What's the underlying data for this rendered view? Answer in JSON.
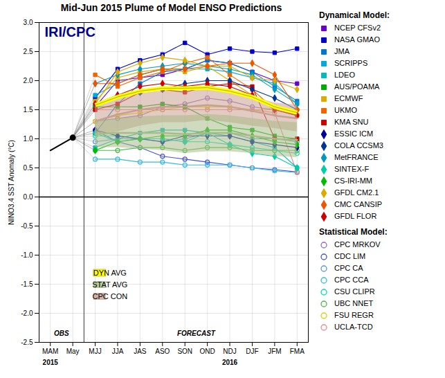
{
  "chart_data": {
    "type": "line",
    "title": "Mid-Jun 2015 Plume of Model ENSO Predictions",
    "categories": [
      "MAM",
      "May",
      "MJJ",
      "JJA",
      "JAS",
      "ASO",
      "SON",
      "OND",
      "NDJ",
      "DJF",
      "JFM",
      "FMA"
    ],
    "ylabel": "NINO3.4 SST Anomaly (°C)",
    "ylim": [
      -2.5,
      3.0
    ],
    "yticks": [
      -2.5,
      {
        "value": -2,
        "label": "-2.0"
      },
      -1.5,
      {
        "value": -1,
        "label": "-1.0"
      },
      -0.5,
      {
        "value": 0,
        "label": "0.0"
      },
      0.5,
      {
        "value": 1,
        "label": "1.0"
      },
      1.5,
      {
        "value": 2,
        "label": "2.0"
      },
      2.5,
      {
        "value": 3,
        "label": "3.0"
      }
    ],
    "grid": true,
    "reference_y": [
      0
    ],
    "observed": {
      "color": "black",
      "values": [
        0.8,
        1.02,
        null,
        null,
        null,
        null,
        null,
        null,
        null,
        null,
        null,
        null
      ]
    },
    "series_groups": [
      {
        "title": "Dynamical Model:",
        "series": [
          {
            "name": "NCEP CFSv2",
            "color": "#6600cc",
            "marker": "square",
            "values": [
              null,
              null,
              1.55,
              2.0,
              2.05,
              2.1,
              2.2,
              2.35,
              2.3,
              2.15,
              2.0,
              1.95
            ]
          },
          {
            "name": "NASA GMAO",
            "color": "#0000cc",
            "marker": "square",
            "values": [
              null,
              null,
              1.7,
              2.2,
              2.35,
              2.45,
              2.65,
              2.45,
              2.55,
              2.5,
              2.48,
              2.55
            ]
          },
          {
            "name": "JMA",
            "color": "#0077cc",
            "marker": "square",
            "values": [
              null,
              null,
              1.1,
              1.6,
              1.95,
              2.15,
              2.2,
              2.35,
              2.3,
              2.15,
              1.9,
              1.65
            ]
          },
          {
            "name": "SCRIPPS",
            "color": "#00aadd",
            "marker": "square",
            "values": [
              null,
              null,
              1.75,
              1.95,
              2.1,
              2.2,
              2.2,
              2.2,
              2.15,
              2.05,
              1.95,
              1.6
            ]
          },
          {
            "name": "LDEO",
            "color": "#00bbbb",
            "marker": "square",
            "values": [
              null,
              null,
              0.85,
              1.0,
              1.1,
              1.15,
              1.15,
              1.1,
              1.05,
              0.95,
              0.85,
              0.5
            ]
          },
          {
            "name": "AUS/POAMA",
            "color": "#00aa00",
            "marker": "square",
            "values": [
              null,
              null,
              1.55,
              1.55,
              1.55,
              1.6,
              1.55,
              1.35,
              1.2,
              1.15,
              1.05,
              1.0
            ]
          },
          {
            "name": "ECMWF",
            "color": "#ddaa00",
            "marker": "square",
            "values": [
              null,
              null,
              1.65,
              2.05,
              2.15,
              2.2,
              2.15,
              2.25,
              2.0,
              1.75,
              1.55,
              1.4
            ]
          },
          {
            "name": "UKMO",
            "color": "#ee6600",
            "marker": "square",
            "values": [
              null,
              null,
              2.1,
              1.9,
              2.05,
              2.15,
              2.3,
              2.4,
              2.1,
              1.85,
              1.5,
              1.4
            ]
          },
          {
            "name": "KMA SNU",
            "color": "#cc0000",
            "marker": "square",
            "values": [
              null,
              null,
              1.5,
              1.6,
              1.8,
              1.85,
              1.8,
              1.9,
              1.95,
              1.9,
              1.0,
              1.0
            ]
          },
          {
            "name": "ESSIC ICM",
            "color": "#000099",
            "marker": "diamond",
            "values": [
              null,
              null,
              1.15,
              1.05,
              1.0,
              0.95,
              1.05,
              1.05,
              1.05,
              0.95,
              0.9,
              0.85
            ]
          },
          {
            "name": "COLA CCSM3",
            "color": "#003399",
            "marker": "diamond",
            "values": [
              null,
              null,
              1.6,
              1.75,
              1.8,
              1.85,
              1.95,
              2.0,
              2.0,
              1.85,
              1.7,
              1.5
            ]
          },
          {
            "name": "MetFRANCE",
            "color": "#0099bb",
            "marker": "diamond",
            "values": [
              null,
              null,
              1.95,
              2.1,
              2.2,
              2.25,
              2.3,
              2.25,
              2.2,
              2.1,
              1.85,
              1.6
            ]
          },
          {
            "name": "SINTEX-F",
            "color": "#00ccaa",
            "marker": "diamond",
            "values": [
              null,
              null,
              1.1,
              0.95,
              1.0,
              1.0,
              0.95,
              1.1,
              0.9,
              0.75,
              0.7,
              0.5
            ]
          },
          {
            "name": "CS-IRI-MM",
            "color": "#00bb00",
            "marker": "diamond",
            "values": [
              null,
              null,
              0.8,
              0.95,
              1.0,
              1.05,
              1.05,
              1.15,
              1.15,
              1.05,
              0.95,
              0.9
            ]
          },
          {
            "name": "GFDL CM2.1",
            "color": "#ddaa00",
            "marker": "diamond",
            "values": [
              null,
              null,
              1.6,
              2.15,
              2.3,
              2.4,
              2.35,
              2.25,
              2.25,
              2.05,
              2.0,
              1.85
            ]
          },
          {
            "name": "CMC CANSIP",
            "color": "#ee5500",
            "marker": "diamond",
            "values": [
              null,
              null,
              1.95,
              1.95,
              2.1,
              2.2,
              2.2,
              2.25,
              2.3,
              2.3,
              2.1,
              1.5
            ]
          },
          {
            "name": "GFDL FLOR",
            "color": "#cc0000",
            "marker": "diamond",
            "values": [
              null,
              null,
              1.6,
              1.75,
              1.9,
              1.95,
              1.9,
              1.95,
              1.9,
              1.75,
              1.5,
              1.4
            ]
          }
        ]
      },
      {
        "title": "Statistical Model:",
        "series": [
          {
            "name": "CPC MRKOV",
            "color": "#9966cc",
            "marker": "open_circle",
            "values": [
              null,
              null,
              1.3,
              1.35,
              1.4,
              1.55,
              1.6,
              1.7,
              1.65,
              1.55,
              1.5,
              1.5
            ]
          },
          {
            "name": "CDC LIM",
            "color": "#4455cc",
            "marker": "open_circle",
            "values": [
              null,
              null,
              1.15,
              0.95,
              0.85,
              0.7,
              0.65,
              0.6,
              0.55,
              0.5,
              0.47,
              0.43
            ]
          },
          {
            "name": "CPC CA",
            "color": "#5599dd",
            "marker": "open_circle",
            "values": [
              null,
              null,
              0.95,
              1.0,
              1.0,
              0.95,
              1.0,
              1.1,
              1.1,
              1.0,
              1.0,
              0.95
            ]
          },
          {
            "name": "CPC CCA",
            "color": "#33bbdd",
            "marker": "open_circle",
            "values": [
              null,
              null,
              0.65,
              0.65,
              0.6,
              0.6,
              0.55,
              0.55,
              0.55,
              0.5,
              0.45,
              0.42
            ]
          },
          {
            "name": "CSU CLIPR",
            "color": "#00ddaa",
            "marker": "open_circle",
            "values": [
              null,
              null,
              1.05,
              1.05,
              1.0,
              1.0,
              0.95,
              0.95,
              0.9,
              0.85,
              0.8,
              0.75
            ]
          },
          {
            "name": "UBC NNET",
            "color": "#44bb44",
            "marker": "open_circle",
            "values": [
              null,
              null,
              0.8,
              0.8,
              0.85,
              0.85,
              0.8,
              0.85,
              0.85,
              0.8,
              0.8,
              0.8
            ]
          },
          {
            "name": "FSU REGR",
            "color": "#ddcc00",
            "marker": "open_circle",
            "values": [
              null,
              null,
              1.3,
              1.4,
              1.45,
              1.5,
              1.55,
              1.55,
              1.55,
              1.5,
              1.5,
              1.5
            ]
          },
          {
            "name": "UCLA-TCD",
            "color": "#ee8888",
            "marker": "open_circle",
            "values": [
              null,
              null,
              1.5,
              1.5,
              1.5,
              1.5,
              1.5,
              1.5,
              1.5,
              1.5,
              1.45,
              0.42
            ]
          }
        ]
      }
    ],
    "averages": [
      {
        "name": "DYN AVG",
        "color": "yellow",
        "edge_color": "#aaaa00",
        "values": [
          null,
          null,
          1.58,
          1.72,
          1.82,
          1.87,
          1.87,
          1.88,
          1.82,
          1.72,
          1.55,
          1.45
        ]
      },
      {
        "name": "STAT AVG",
        "color": "#aabb88",
        "values": [
          null,
          null,
          1.08,
          1.1,
          1.1,
          1.1,
          1.08,
          1.1,
          1.1,
          1.05,
          1.0,
          0.98
        ],
        "upper": [
          null,
          null,
          1.3,
          1.35,
          1.38,
          1.4,
          1.4,
          1.42,
          1.4,
          1.35,
          1.3,
          1.28
        ],
        "lower": [
          null,
          null,
          0.85,
          0.85,
          0.82,
          0.8,
          0.75,
          0.78,
          0.78,
          0.75,
          0.7,
          0.68
        ]
      },
      {
        "name": "CPC CON",
        "color": "#c8a090",
        "values": [
          null,
          null,
          1.3,
          1.42,
          1.5,
          1.55,
          1.55,
          1.58,
          1.55,
          1.48,
          1.4,
          1.35
        ],
        "upper": [
          null,
          null,
          1.55,
          1.72,
          1.78,
          1.82,
          1.82,
          1.85,
          1.82,
          1.72,
          1.62,
          1.58
        ],
        "lower": [
          null,
          null,
          1.05,
          1.12,
          1.22,
          1.28,
          1.28,
          1.32,
          1.28,
          1.22,
          1.18,
          1.12
        ]
      }
    ],
    "obs_label": "OBS",
    "forecast_label": "FORECAST",
    "logo": {
      "text": "IRI/CPC",
      "color": "#000088"
    },
    "year_labels": [
      {
        "label": "2015",
        "at": "MAM"
      },
      {
        "label": "2016",
        "at": "NDJ"
      }
    ]
  }
}
